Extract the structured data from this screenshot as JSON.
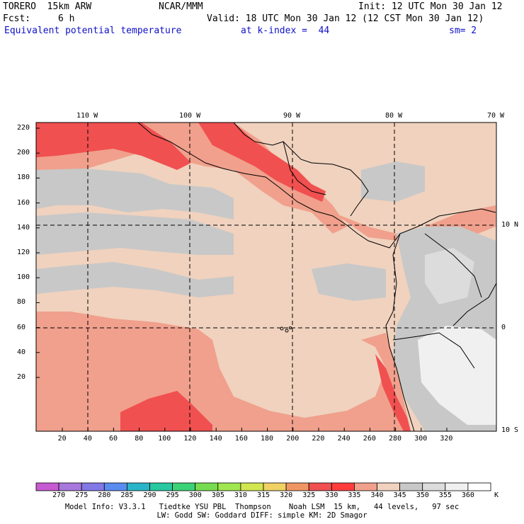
{
  "header": {
    "model_name": "TORERO  15km ARW",
    "center": "NCAR/MMM",
    "init": "Init: 12 UTC Mon 30 Jan 12",
    "fcst_label": "Fcst:",
    "fcst_value": "6 h",
    "valid": "Valid: 18 UTC Mon 30 Jan 12 (12 CST Mon 30 Jan 12)",
    "field": "Equivalent potential temperature",
    "level": "at k-index =  44",
    "smoothing": "sm= 2"
  },
  "map": {
    "lon_labels": [
      "110 W",
      "100 W",
      "90 W",
      "80 W",
      "70 W"
    ],
    "lat_labels": [
      "10 N",
      "0",
      "10 S"
    ],
    "y_ticks": [
      "220",
      "200",
      "180",
      "160",
      "140",
      "120",
      "100",
      "80",
      "60",
      "40",
      "20"
    ],
    "x_ticks": [
      "20",
      "40",
      "60",
      "80",
      "100",
      "120",
      "140",
      "160",
      "180",
      "200",
      "220",
      "240",
      "260",
      "280",
      "300",
      "320"
    ]
  },
  "colorbar": {
    "levels": [
      "270",
      "275",
      "280",
      "285",
      "290",
      "295",
      "300",
      "305",
      "310",
      "315",
      "320",
      "325",
      "330",
      "335",
      "340",
      "345",
      "350",
      "355",
      "360"
    ],
    "unit": "K",
    "colors": [
      "#c85ad2",
      "#a878dc",
      "#8278e6",
      "#5a8cf0",
      "#2ab4c8",
      "#28c8a0",
      "#3cd278",
      "#78dc50",
      "#a0e650",
      "#d2e650",
      "#f0d264",
      "#f09664",
      "#f05050",
      "#ff3c3c",
      "#f0a08c",
      "#f0d2be",
      "#c8c8c8",
      "#dcdcdc",
      "#f0f0f0",
      "#ffffff"
    ]
  },
  "footer": {
    "line1": "Model Info: V3.3.1   Tiedtke YSU PBL  Thompson    Noah LSM  15 km,   44 levels,   97 sec",
    "line2": "LW: Godd SW: Goddard DIFF: simple KM: 2D Smagor"
  }
}
